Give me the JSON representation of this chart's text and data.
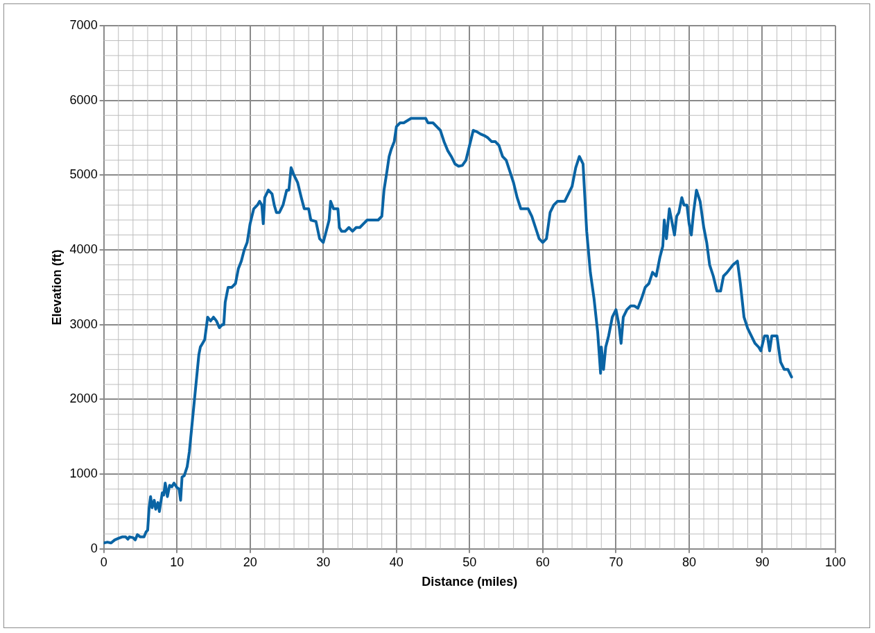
{
  "chart_data": {
    "type": "line",
    "xlabel": "Distance (miles)",
    "ylabel": "Elevation (ft)",
    "xlim": [
      0,
      100
    ],
    "xticks": [
      0,
      10,
      20,
      30,
      40,
      50,
      60,
      70,
      80,
      90,
      100
    ],
    "ylim": [
      0,
      7000
    ],
    "yticks": [
      0,
      1000,
      2000,
      3000,
      4000,
      5000,
      6000,
      7000
    ],
    "grid": true,
    "legend": false,
    "marker": "none",
    "line_style": "solid",
    "series": [
      {
        "color": "#0a64a4",
        "x": [
          0,
          0.5,
          1,
          1.5,
          2,
          2.5,
          3,
          3.3,
          3.5,
          4,
          4.3,
          4.6,
          5,
          5.5,
          5.8,
          6,
          6.2,
          6.4,
          6.6,
          6.9,
          7.1,
          7.4,
          7.6,
          8,
          8.2,
          8.4,
          8.7,
          9,
          9.3,
          9.6,
          10,
          10.3,
          10.5,
          10.7,
          11,
          11.4,
          11.7,
          12,
          12.4,
          12.7,
          13,
          13.2,
          13.5,
          13.8,
          14.2,
          14.6,
          15,
          15.4,
          15.8,
          16.2,
          16.4,
          16.6,
          17,
          17.5,
          18,
          18.4,
          18.8,
          19.2,
          19.6,
          20,
          20.5,
          21,
          21.3,
          21.6,
          21.8,
          22,
          22.5,
          23,
          23.3,
          23.6,
          24,
          24.5,
          25,
          25.3,
          25.6,
          26,
          26.5,
          27,
          27.4,
          28,
          28.3,
          29,
          29.5,
          30,
          30.4,
          30.8,
          31,
          31.4,
          32,
          32.2,
          32.5,
          33,
          33.5,
          34,
          34.5,
          35,
          35.5,
          36,
          36.5,
          37,
          37.5,
          38,
          38.3,
          38.7,
          39,
          39.3,
          39.7,
          40,
          40.5,
          41,
          41.5,
          42,
          43,
          44,
          44.3,
          45,
          45.5,
          46,
          46.5,
          47,
          47.5,
          48,
          48.5,
          49,
          49.5,
          50,
          50.5,
          51,
          51.5,
          52,
          52.5,
          53,
          53.5,
          54,
          54.5,
          55,
          55.5,
          56,
          56.5,
          57,
          58,
          58.5,
          59,
          59.5,
          60,
          60.5,
          61,
          61.5,
          62,
          63,
          63.5,
          64,
          64.5,
          65,
          65.5,
          66,
          66.5,
          67,
          67.5,
          67.9,
          68,
          68.3,
          68.6,
          69,
          69.5,
          70,
          70.4,
          70.7,
          71,
          71.5,
          72,
          72.5,
          73,
          73.5,
          74,
          74.5,
          75,
          75.5,
          76,
          76.4,
          76.6,
          76.9,
          77.3,
          77.6,
          78,
          78.3,
          78.6,
          79,
          79.3,
          79.7,
          80,
          80.3,
          80.6,
          81,
          81.5,
          82,
          82.4,
          82.8,
          83.3,
          83.8,
          84.3,
          84.7,
          85.2,
          86,
          86.6,
          87,
          87.5,
          88,
          88.5,
          89,
          89.5,
          89.8,
          90.3,
          90.7,
          91,
          91.3,
          91.7,
          92,
          92.5,
          93,
          93.5,
          94
        ],
        "values": [
          80,
          90,
          80,
          120,
          140,
          160,
          160,
          130,
          160,
          150,
          120,
          190,
          160,
          160,
          230,
          250,
          550,
          700,
          550,
          650,
          530,
          620,
          500,
          750,
          720,
          880,
          700,
          850,
          830,
          880,
          820,
          800,
          650,
          960,
          980,
          1100,
          1300,
          1600,
          2000,
          2300,
          2600,
          2700,
          2750,
          2800,
          3100,
          3050,
          3100,
          3050,
          2960,
          3000,
          3000,
          3300,
          3500,
          3500,
          3550,
          3750,
          3850,
          4000,
          4100,
          4350,
          4550,
          4600,
          4650,
          4600,
          4350,
          4700,
          4800,
          4750,
          4600,
          4500,
          4500,
          4600,
          4800,
          4800,
          5100,
          5000,
          4900,
          4700,
          4550,
          4550,
          4400,
          4380,
          4150,
          4100,
          4250,
          4400,
          4650,
          4550,
          4550,
          4300,
          4250,
          4250,
          4300,
          4250,
          4300,
          4300,
          4350,
          4400,
          4400,
          4400,
          4400,
          4450,
          4800,
          5050,
          5250,
          5350,
          5450,
          5650,
          5700,
          5700,
          5730,
          5760,
          5760,
          5760,
          5700,
          5700,
          5650,
          5600,
          5450,
          5330,
          5250,
          5150,
          5120,
          5130,
          5200,
          5400,
          5600,
          5580,
          5550,
          5530,
          5500,
          5450,
          5450,
          5400,
          5250,
          5200,
          5050,
          4900,
          4700,
          4550,
          4550,
          4450,
          4300,
          4150,
          4100,
          4150,
          4500,
          4600,
          4650,
          4650,
          4750,
          4850,
          5100,
          5250,
          5150,
          4250,
          3700,
          3350,
          2900,
          2350,
          2700,
          2400,
          2700,
          2850,
          3100,
          3200,
          3000,
          2750,
          3100,
          3200,
          3250,
          3250,
          3220,
          3350,
          3500,
          3550,
          3700,
          3650,
          3900,
          4050,
          4400,
          4150,
          4550,
          4400,
          4200,
          4450,
          4500,
          4700,
          4600,
          4600,
          4350,
          4200,
          4500,
          4800,
          4650,
          4300,
          4100,
          3800,
          3650,
          3450,
          3450,
          3650,
          3700,
          3800,
          3850,
          3550,
          3100,
          2950,
          2850,
          2750,
          2700,
          2650,
          2850,
          2850,
          2650,
          2850,
          2850,
          2850,
          2500,
          2400,
          2400,
          2300
        ]
      }
    ]
  }
}
